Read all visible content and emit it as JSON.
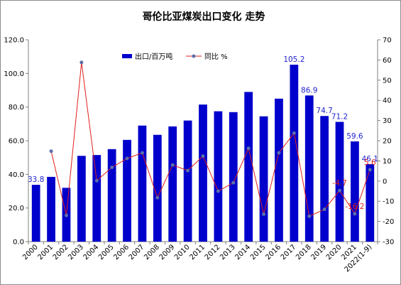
{
  "chart_data": {
    "type": "bar",
    "title": "哥伦比亚煤炭出口变化 走势",
    "categories": [
      "2000",
      "2001",
      "2002",
      "2003",
      "2004",
      "2005",
      "2006",
      "2007",
      "2008",
      "2009",
      "2010",
      "2011",
      "2012",
      "2013",
      "2014",
      "2015",
      "2016",
      "2017",
      "2018",
      "2019",
      "2020",
      "2021",
      "2022(1-9)"
    ],
    "series": [
      {
        "name": "出口/百万吨",
        "type": "bar",
        "axis": "left",
        "color": "#0000cc",
        "values": [
          33.8,
          38.5,
          32.0,
          51.0,
          51.5,
          55.0,
          60.5,
          69.0,
          63.5,
          68.5,
          72.0,
          81.5,
          77.5,
          77.0,
          89.0,
          74.5,
          85.0,
          105.2,
          86.9,
          74.7,
          71.2,
          59.6,
          46.1
        ]
      },
      {
        "name": "同比 %",
        "type": "line",
        "axis": "right",
        "color": "#e0201a",
        "values": [
          null,
          14.8,
          -17.0,
          58.8,
          0.2,
          6.8,
          11.2,
          14.0,
          -8.2,
          8.0,
          5.2,
          12.4,
          -5.0,
          -0.8,
          16.2,
          -16.4,
          14.0,
          23.8,
          -17.4,
          -14.0,
          -4.7,
          -16.2,
          5.6
        ]
      }
    ],
    "y_left": {
      "min": 0,
      "max": 120,
      "ticks": [
        "0.0",
        "20.0",
        "40.0",
        "60.0",
        "80.0",
        "100.0",
        "120.0"
      ]
    },
    "y_right": {
      "min": -30,
      "max": 70,
      "ticks": [
        "-30",
        "-20",
        "-10",
        "0",
        "10",
        "20",
        "30",
        "40",
        "50",
        "60",
        "70"
      ]
    },
    "bar_labels": [
      {
        "index": 0,
        "text": "33.8"
      },
      {
        "index": 17,
        "text": "105.2"
      },
      {
        "index": 18,
        "text": "86.9"
      },
      {
        "index": 19,
        "text": "74.7"
      },
      {
        "index": 20,
        "text": "71.2"
      },
      {
        "index": 21,
        "text": "59.6"
      },
      {
        "index": 22,
        "text": "46.1"
      }
    ],
    "line_labels": [
      {
        "index": 20,
        "text": "-4.7"
      },
      {
        "index": 21,
        "text": "-16.2"
      },
      {
        "index": 22,
        "text": "5.6"
      }
    ],
    "legend_position": "top-center",
    "grid": false
  }
}
